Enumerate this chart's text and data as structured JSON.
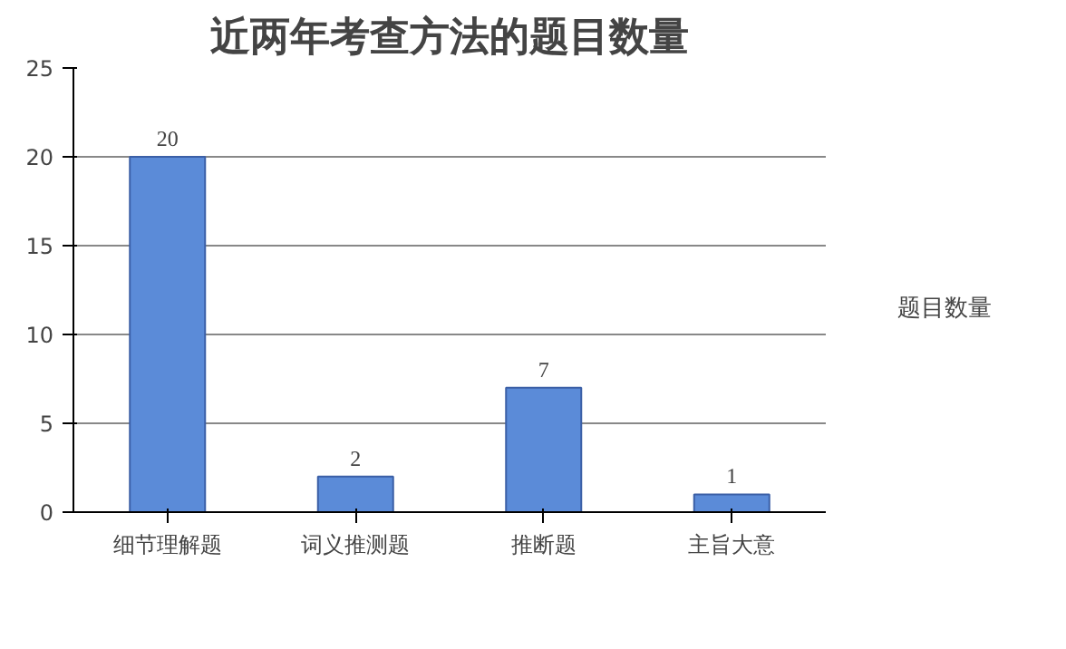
{
  "chart_data": {
    "type": "bar",
    "title": "近两年考查方法的题目数量",
    "categories": [
      "细节理解题",
      "词义推测题",
      "推断题",
      "主旨大意"
    ],
    "series": [
      {
        "name": "题目数量",
        "color": "#5b8bd8",
        "values": [
          20,
          2,
          7,
          1
        ]
      }
    ],
    "ylim": [
      0,
      25
    ],
    "yticks": [
      0,
      5,
      10,
      15,
      20,
      25
    ],
    "grid": "y",
    "legend": "right",
    "data_labels": true
  }
}
